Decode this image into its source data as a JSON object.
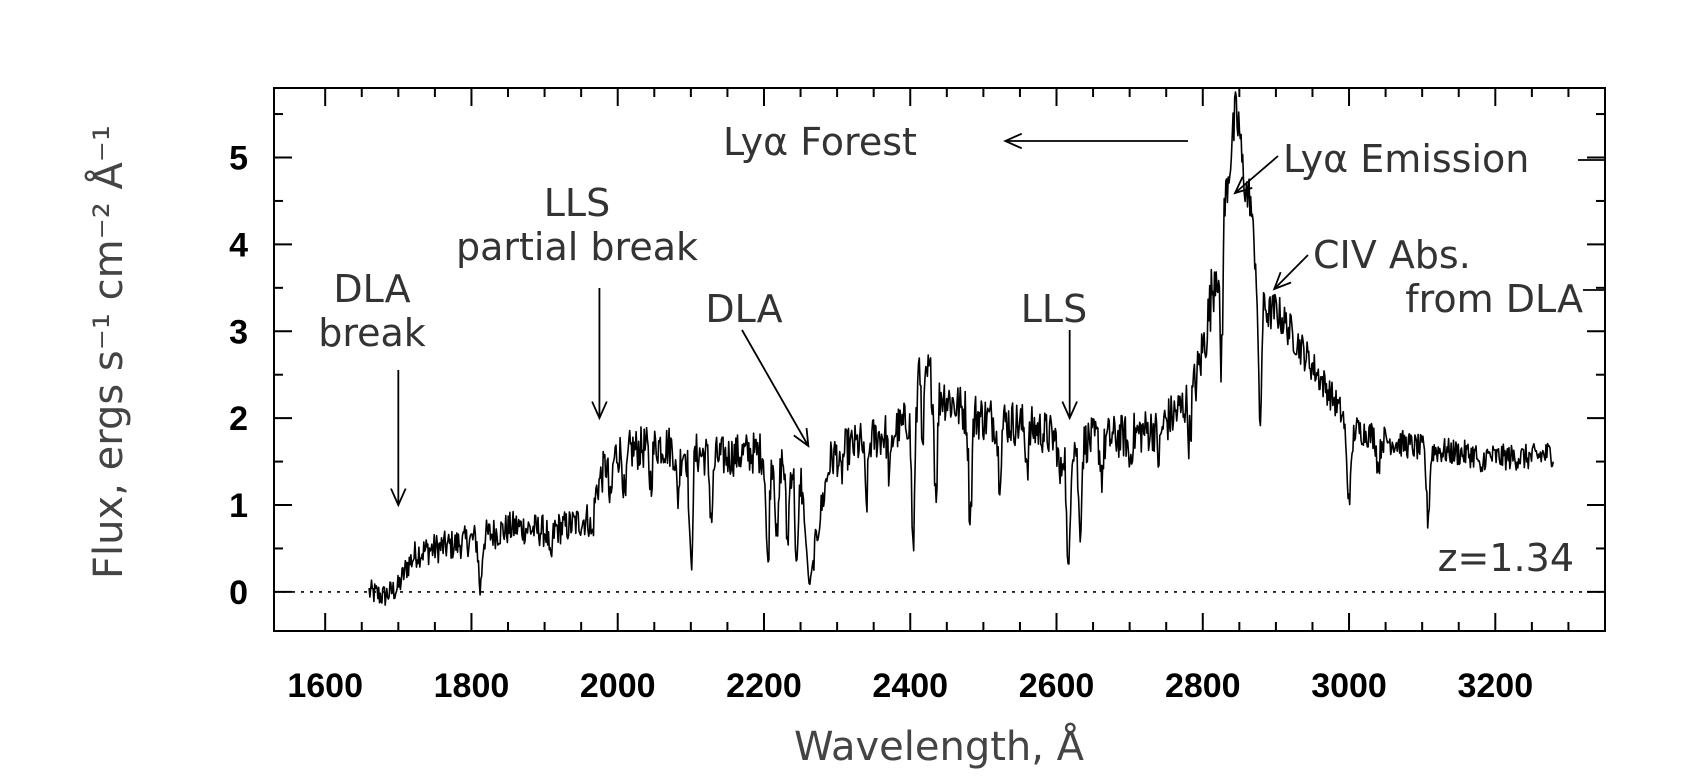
{
  "chart_data": {
    "type": "line",
    "xlabel": "Wavelength, Å",
    "ylabel": "Flux, ergs s⁻¹ cm⁻² Å⁻¹",
    "xlim": [
      1530,
      3350
    ],
    "ylim": [
      -0.45,
      5.8
    ],
    "x_ticks": [
      1600,
      1800,
      2000,
      2200,
      2400,
      2600,
      2800,
      3000,
      3200
    ],
    "y_ticks": [
      0,
      1,
      2,
      3,
      4,
      5
    ],
    "zero_line": true,
    "grid": false,
    "series": [
      {
        "x": [
          1660,
          1680,
          1700,
          1712,
          1725,
          1750,
          1780,
          1820,
          1860,
          1900,
          1930,
          1960,
          1972,
          1985,
          2000,
          2030,
          2060,
          2100,
          2140,
          2180,
          2200,
          2230,
          2250,
          2262,
          2275,
          2290,
          2300,
          2330,
          2360,
          2390,
          2410,
          2425,
          2440,
          2470,
          2500,
          2540,
          2580,
          2600,
          2620,
          2650,
          2700,
          2740,
          2770,
          2790,
          2805,
          2815,
          2825,
          2835,
          2845,
          2852,
          2860,
          2870,
          2880,
          2890,
          2900,
          2920,
          2950,
          2980,
          3000,
          3050,
          3100,
          3150,
          3200,
          3250,
          3280
        ],
        "values": [
          0.0,
          -0.05,
          0.05,
          0.3,
          0.45,
          0.5,
          0.55,
          0.65,
          0.75,
          0.7,
          0.75,
          0.85,
          1.2,
          1.5,
          1.6,
          1.65,
          1.7,
          1.6,
          1.55,
          1.6,
          1.6,
          1.5,
          1.4,
          0.05,
          0.8,
          1.5,
          1.6,
          1.7,
          1.8,
          1.9,
          2.2,
          2.5,
          2.3,
          2.1,
          2.0,
          1.95,
          1.85,
          1.75,
          1.7,
          1.75,
          1.8,
          1.9,
          2.1,
          2.4,
          3.0,
          3.6,
          4.2,
          4.8,
          5.5,
          5.0,
          4.6,
          4.0,
          3.4,
          3.2,
          3.25,
          3.0,
          2.6,
          2.2,
          1.9,
          1.75,
          1.65,
          1.6,
          1.55,
          1.55,
          1.6
        ]
      }
    ],
    "absorption_lines": [
      {
        "x": 1812,
        "depth": 0.6
      },
      {
        "x": 1908,
        "depth": 0.4
      },
      {
        "x": 1965,
        "depth": 0.35
      },
      {
        "x": 1990,
        "depth": 0.55
      },
      {
        "x": 2010,
        "depth": 0.6
      },
      {
        "x": 2045,
        "depth": 0.4
      },
      {
        "x": 2082,
        "depth": 0.55
      },
      {
        "x": 2100,
        "depth": 1.35
      },
      {
        "x": 2128,
        "depth": 0.7
      },
      {
        "x": 2205,
        "depth": 1.3
      },
      {
        "x": 2218,
        "depth": 1.0
      },
      {
        "x": 2232,
        "depth": 0.9
      },
      {
        "x": 2245,
        "depth": 1.2
      },
      {
        "x": 2305,
        "depth": 0.3
      },
      {
        "x": 2340,
        "depth": 0.7
      },
      {
        "x": 2372,
        "depth": 0.5
      },
      {
        "x": 2404,
        "depth": 1.6
      },
      {
        "x": 2416,
        "depth": 0.9
      },
      {
        "x": 2435,
        "depth": 1.2
      },
      {
        "x": 2482,
        "depth": 1.2
      },
      {
        "x": 2522,
        "depth": 0.6
      },
      {
        "x": 2560,
        "depth": 0.4
      },
      {
        "x": 2605,
        "depth": 0.45
      },
      {
        "x": 2616,
        "depth": 1.6
      },
      {
        "x": 2632,
        "depth": 1.0
      },
      {
        "x": 2662,
        "depth": 0.4
      },
      {
        "x": 2700,
        "depth": 0.3
      },
      {
        "x": 2740,
        "depth": 0.35
      },
      {
        "x": 2782,
        "depth": 0.5
      },
      {
        "x": 2825,
        "depth": 1.6
      },
      {
        "x": 2878,
        "depth": 1.6
      },
      {
        "x": 2998,
        "depth": 0.6
      },
      {
        "x": 3002,
        "depth": 0.55
      },
      {
        "x": 3040,
        "depth": 0.35
      },
      {
        "x": 3108,
        "depth": 0.8
      },
      {
        "x": 3180,
        "depth": 0.25
      }
    ],
    "emission_spikes": [
      {
        "x": 2413,
        "height": 0.9
      },
      {
        "x": 2850,
        "height": 0.2
      },
      {
        "x": 2865,
        "height": 0.25
      }
    ],
    "annotations": [
      {
        "lines": [
          "DLA",
          "break"
        ],
        "arrow_to_x": 1700
      },
      {
        "lines": [
          "LLS",
          "partial break"
        ],
        "arrow_to_x": 1975
      },
      {
        "lines": [
          "DLA"
        ],
        "arrow_to_x": 2262
      },
      {
        "lines": [
          "LLS"
        ],
        "arrow_to_x": 2618
      },
      {
        "lines": [
          "Lyα Forest"
        ],
        "arrow_to_x": 2530
      },
      {
        "lines": [
          "Lyα Emission"
        ],
        "arrow_to_x": 2855
      },
      {
        "lines": [
          "CIV Abs.",
          "from DLA"
        ],
        "arrow_to_x": 2895
      },
      {
        "lines": [
          "z=1.34"
        ]
      }
    ]
  }
}
